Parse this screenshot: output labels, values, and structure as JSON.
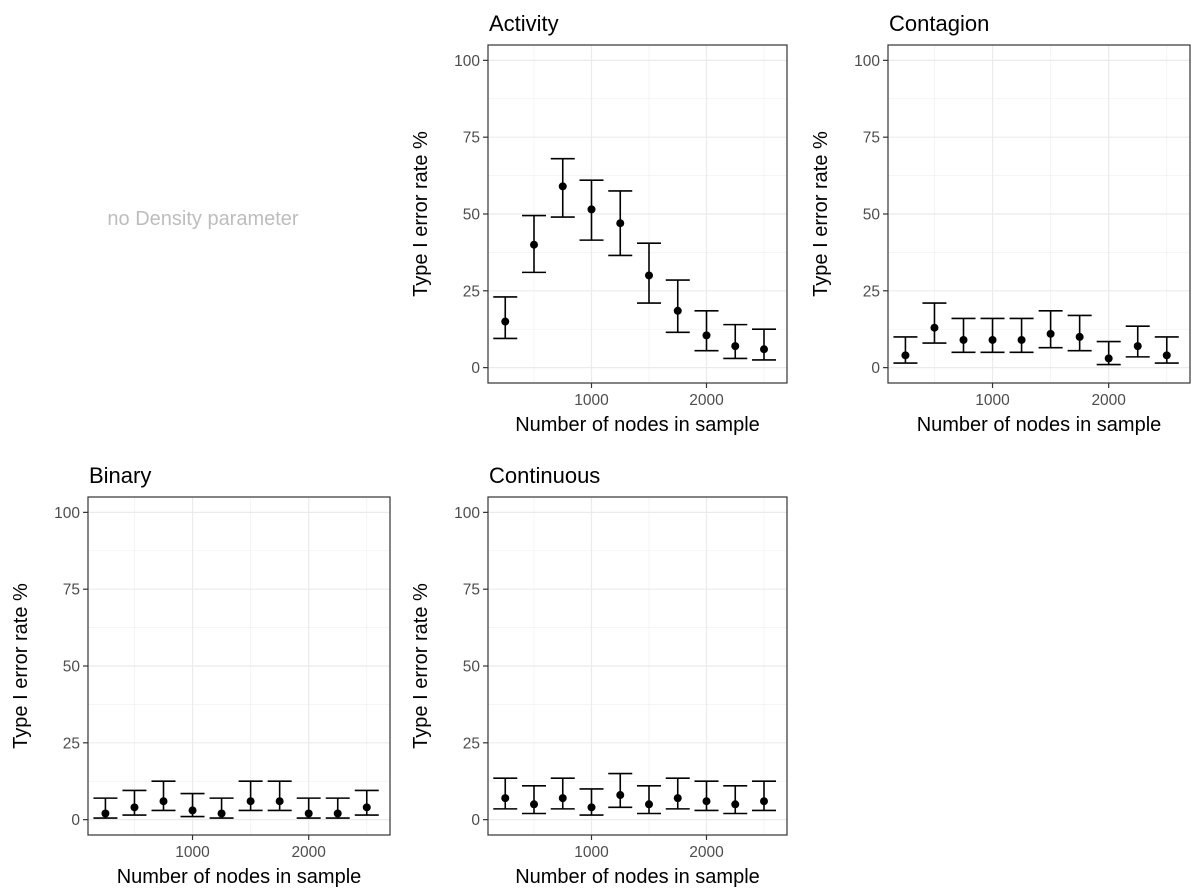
{
  "note": "no Density parameter",
  "chart_data": [
    {
      "type": "scatter",
      "title": "Activity",
      "xlabel": "Number of nodes in sample",
      "ylabel": "Type I error rate %",
      "xticks": [
        1000,
        2000
      ],
      "yticks": [
        0,
        25,
        50,
        75,
        100
      ],
      "xlim": [
        100,
        2700
      ],
      "ylim": [
        -5,
        105
      ],
      "grid": true,
      "x": [
        250,
        500,
        750,
        1000,
        1250,
        1500,
        1750,
        2000,
        2250,
        2500
      ],
      "y": [
        15,
        40,
        59,
        51.5,
        47,
        30,
        18.5,
        10.5,
        7,
        6
      ],
      "lower": [
        9.5,
        31,
        49,
        41.5,
        36.5,
        21,
        11.5,
        5.5,
        3,
        2.5
      ],
      "upper": [
        23,
        49.5,
        68,
        61,
        57.5,
        40.5,
        28.5,
        18.5,
        14,
        12.5
      ]
    },
    {
      "type": "scatter",
      "title": "Contagion",
      "xlabel": "Number of nodes in sample",
      "ylabel": "Type I error rate %",
      "xticks": [
        1000,
        2000
      ],
      "yticks": [
        0,
        25,
        50,
        75,
        100
      ],
      "xlim": [
        100,
        2700
      ],
      "ylim": [
        -5,
        105
      ],
      "grid": true,
      "x": [
        250,
        500,
        750,
        1000,
        1250,
        1500,
        1750,
        2000,
        2250,
        2500
      ],
      "y": [
        4,
        13,
        9,
        9,
        9,
        11,
        10,
        3,
        7,
        4
      ],
      "lower": [
        1.5,
        8,
        5,
        5,
        5,
        6.5,
        5.5,
        1,
        3.5,
        1.5
      ],
      "upper": [
        10,
        21,
        16,
        16,
        16,
        18.5,
        17,
        8.5,
        13.5,
        10
      ]
    },
    {
      "type": "scatter",
      "title": "Binary",
      "xlabel": "Number of nodes in sample",
      "ylabel": "Type I error rate %",
      "xticks": [
        1000,
        2000
      ],
      "yticks": [
        0,
        25,
        50,
        75,
        100
      ],
      "xlim": [
        100,
        2700
      ],
      "ylim": [
        -5,
        105
      ],
      "grid": true,
      "x": [
        250,
        500,
        750,
        1000,
        1250,
        1500,
        1750,
        2000,
        2250,
        2500
      ],
      "y": [
        2,
        4,
        6,
        3,
        2,
        6,
        6,
        2,
        2,
        4
      ],
      "lower": [
        0.5,
        1.5,
        3,
        1,
        0.5,
        3,
        3,
        0.5,
        0.5,
        1.5
      ],
      "upper": [
        7,
        9.5,
        12.5,
        8.5,
        7,
        12.5,
        12.5,
        7,
        7,
        9.5
      ]
    },
    {
      "type": "scatter",
      "title": "Continuous",
      "xlabel": "Number of nodes in sample",
      "ylabel": "Type I error rate %",
      "xticks": [
        1000,
        2000
      ],
      "yticks": [
        0,
        25,
        50,
        75,
        100
      ],
      "xlim": [
        100,
        2700
      ],
      "ylim": [
        -5,
        105
      ],
      "grid": true,
      "x": [
        250,
        500,
        750,
        1000,
        1250,
        1500,
        1750,
        2000,
        2250,
        2500
      ],
      "y": [
        7,
        5,
        7,
        4,
        8,
        5,
        7,
        6,
        5,
        6
      ],
      "lower": [
        3.5,
        2,
        3.5,
        1.5,
        4,
        2,
        3.5,
        3,
        2,
        3
      ],
      "upper": [
        13.5,
        11,
        13.5,
        10,
        15,
        11,
        13.5,
        12.5,
        11,
        12.5
      ]
    }
  ]
}
